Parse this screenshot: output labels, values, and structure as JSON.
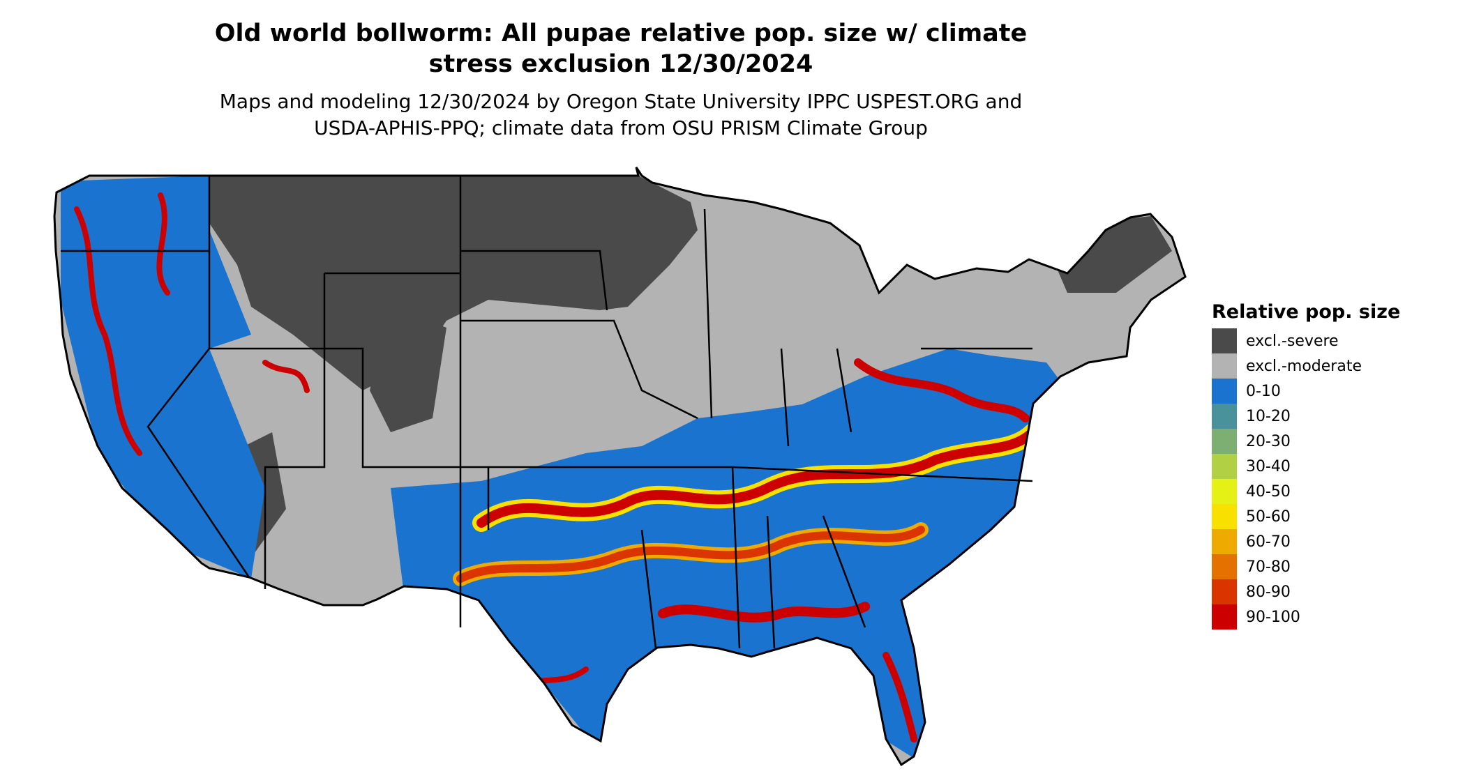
{
  "title": {
    "line1": "Old world bollworm: All pupae relative pop. size w/ climate",
    "line2": "stress exclusion 12/30/2024"
  },
  "subtitle": {
    "line1": "Maps and modeling 12/30/2024 by Oregon State University IPPC USPEST.ORG and",
    "line2": "USDA-APHIS-PPQ; climate data from OSU PRISM Climate Group"
  },
  "legend": {
    "title": "Relative pop. size",
    "items": [
      {
        "label": "excl.-severe",
        "color": "#4a4a4a"
      },
      {
        "label": "excl.-moderate",
        "color": "#b3b3b3"
      },
      {
        "label": "0-10",
        "color": "#1a73cf"
      },
      {
        "label": "10-20",
        "color": "#4a929b"
      },
      {
        "label": "20-30",
        "color": "#7daf72"
      },
      {
        "label": "30-40",
        "color": "#b1d043"
      },
      {
        "label": "40-50",
        "color": "#e5f015"
      },
      {
        "label": "50-60",
        "color": "#f8e000"
      },
      {
        "label": "60-70",
        "color": "#eeaa00"
      },
      {
        "label": "70-80",
        "color": "#e37200"
      },
      {
        "label": "80-90",
        "color": "#da3500"
      },
      {
        "label": "90-100",
        "color": "#cc0000"
      }
    ]
  }
}
